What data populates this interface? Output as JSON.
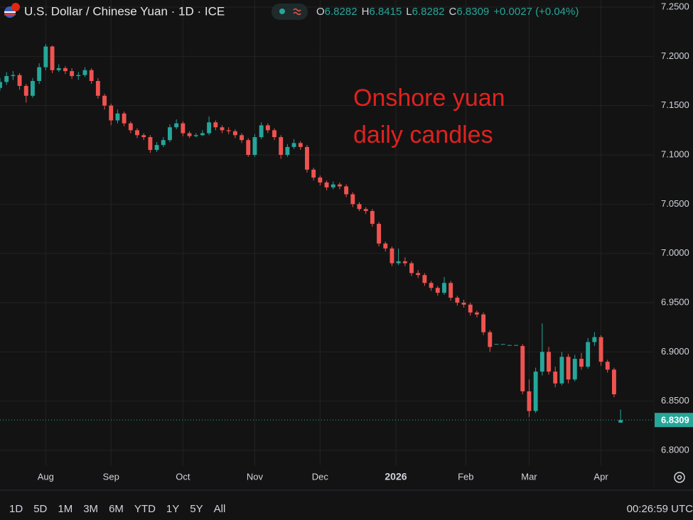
{
  "chart_data": {
    "type": "candlestick",
    "title": "U.S. Dollar / Chinese Yuan · 1D · ICE",
    "ohlc_labels": [
      "O",
      "H",
      "L",
      "C"
    ],
    "change": "+0.0027 (+0.04%)",
    "annotation": [
      "Onshore yuan",
      "daily candles"
    ],
    "annotation_color": "#e0221f",
    "up_color": "#26a69a",
    "down_color": "#ef5350",
    "grid": true,
    "open": [
      7.168,
      7.174,
      7.18,
      7.181,
      7.17,
      7.16,
      7.175,
      7.189,
      7.21,
      7.186,
      7.188,
      7.185,
      7.18,
      7.181,
      7.186,
      7.175,
      7.16,
      7.15,
      7.135,
      7.142,
      7.132,
      7.125,
      7.12,
      7.118,
      7.105,
      7.11,
      7.115,
      7.128,
      7.132,
      7.122,
      7.119,
      7.12,
      7.122,
      7.133,
      7.128,
      7.125,
      7.124,
      7.12,
      7.115,
      7.1,
      7.118,
      7.13,
      7.125,
      7.118,
      7.1,
      7.108,
      7.112,
      7.108,
      7.085,
      7.077,
      7.072,
      7.067,
      7.07,
      7.068,
      7.06,
      7.05,
      7.045,
      7.043,
      7.03,
      7.01,
      7.005,
      6.99,
      6.992,
      6.99,
      6.98,
      6.978,
      6.97,
      6.965,
      6.96,
      6.97,
      6.955,
      6.95,
      6.948,
      6.94,
      6.938,
      6.92,
      6.908,
      6.908,
      6.907,
      6.907,
      6.906,
      6.86,
      6.84,
      6.88,
      6.9,
      6.88,
      6.868,
      6.895,
      6.872,
      6.893,
      6.885,
      6.91,
      6.915,
      6.89,
      6.882,
      6.8282
    ],
    "high": [
      7.178,
      7.184,
      7.185,
      7.183,
      7.172,
      7.178,
      7.193,
      7.2125,
      7.211,
      7.192,
      7.19,
      7.188,
      7.184,
      7.189,
      7.188,
      7.178,
      7.162,
      7.152,
      7.146,
      7.144,
      7.134,
      7.127,
      7.122,
      7.12,
      7.113,
      7.118,
      7.131,
      7.136,
      7.134,
      7.124,
      7.122,
      7.125,
      7.139,
      7.135,
      7.13,
      7.128,
      7.126,
      7.122,
      7.117,
      7.121,
      7.133,
      7.132,
      7.127,
      7.12,
      7.111,
      7.116,
      7.114,
      7.11,
      7.087,
      7.079,
      7.074,
      7.073,
      7.072,
      7.07,
      7.062,
      7.052,
      7.047,
      7.045,
      7.032,
      7.012,
      7.007,
      7.005,
      6.996,
      6.992,
      6.983,
      6.98,
      6.972,
      6.967,
      6.976,
      6.972,
      6.957,
      6.953,
      6.95,
      6.942,
      6.94,
      6.922,
      6.908,
      6.908,
      6.907,
      6.907,
      6.908,
      6.872,
      6.884,
      6.929,
      6.905,
      6.885,
      6.9,
      6.898,
      6.897,
      6.899,
      6.914,
      6.92,
      6.917,
      6.892,
      6.884,
      6.8415
    ],
    "low": [
      7.165,
      7.171,
      7.176,
      7.166,
      7.153,
      7.158,
      7.172,
      7.186,
      7.183,
      7.184,
      7.182,
      7.177,
      7.176,
      7.179,
      7.172,
      7.157,
      7.146,
      7.13,
      7.132,
      7.129,
      7.122,
      7.117,
      7.115,
      7.102,
      7.103,
      7.108,
      7.113,
      7.126,
      7.119,
      7.117,
      7.118,
      7.119,
      7.12,
      7.125,
      7.122,
      7.121,
      7.117,
      7.112,
      7.098,
      7.098,
      7.116,
      7.122,
      7.115,
      7.096,
      7.098,
      7.106,
      7.105,
      7.082,
      7.074,
      7.069,
      7.064,
      7.065,
      7.065,
      7.057,
      7.047,
      7.043,
      7.04,
      7.027,
      7.007,
      7.002,
      6.987,
      6.988,
      6.987,
      6.977,
      6.975,
      6.967,
      6.962,
      6.957,
      6.958,
      6.952,
      6.947,
      6.945,
      6.937,
      6.935,
      6.917,
      6.9,
      6.908,
      6.908,
      6.907,
      6.907,
      6.857,
      6.834,
      6.838,
      6.876,
      6.877,
      6.864,
      6.866,
      6.868,
      6.87,
      6.882,
      6.883,
      6.906,
      6.886,
      6.879,
      6.854,
      6.8282
    ],
    "close": [
      7.174,
      7.18,
      7.181,
      7.17,
      7.16,
      7.175,
      7.189,
      7.21,
      7.186,
      7.188,
      7.185,
      7.18,
      7.181,
      7.186,
      7.175,
      7.16,
      7.15,
      7.135,
      7.142,
      7.132,
      7.125,
      7.12,
      7.118,
      7.105,
      7.11,
      7.115,
      7.128,
      7.132,
      7.122,
      7.119,
      7.12,
      7.122,
      7.133,
      7.128,
      7.125,
      7.124,
      7.12,
      7.115,
      7.1,
      7.118,
      7.13,
      7.125,
      7.118,
      7.1,
      7.108,
      7.112,
      7.108,
      7.085,
      7.077,
      7.072,
      7.067,
      7.07,
      7.068,
      7.06,
      7.05,
      7.045,
      7.043,
      7.03,
      7.01,
      7.005,
      6.99,
      6.992,
      6.99,
      6.98,
      6.978,
      6.97,
      6.965,
      6.96,
      6.97,
      6.955,
      6.95,
      6.948,
      6.94,
      6.938,
      6.92,
      6.905,
      6.908,
      6.908,
      6.907,
      6.907,
      6.86,
      6.84,
      6.88,
      6.9,
      6.88,
      6.868,
      6.895,
      6.872,
      6.893,
      6.885,
      6.91,
      6.915,
      6.89,
      6.882,
      6.857,
      6.8309
    ],
    "xlim": [
      0,
      100.1
    ],
    "xticks": [
      {
        "value": 7,
        "label": "Aug"
      },
      {
        "value": 17,
        "label": "Sep"
      },
      {
        "value": 28,
        "label": "Oct"
      },
      {
        "value": 39,
        "label": "Nov"
      },
      {
        "value": 49,
        "label": "Dec"
      },
      {
        "value": 60.6,
        "label": "2026"
      },
      {
        "value": 71.3,
        "label": "Feb"
      },
      {
        "value": 81,
        "label": "Mar"
      },
      {
        "value": 92,
        "label": "Apr"
      }
    ],
    "ylim": [
      6.7849,
      7.2572
    ],
    "yticks": [
      {
        "value": 6.8,
        "label": "6.8000"
      },
      {
        "value": 6.85,
        "label": "6.8500"
      },
      {
        "value": 6.9,
        "label": "6.9000"
      },
      {
        "value": 6.95,
        "label": "6.9500"
      },
      {
        "value": 7.0,
        "label": "7.0000"
      },
      {
        "value": 7.05,
        "label": "7.0500"
      },
      {
        "value": 7.1,
        "label": "7.1000"
      },
      {
        "value": 7.15,
        "label": "7.1500"
      },
      {
        "value": 7.2,
        "label": "7.2000"
      },
      {
        "value": 7.25,
        "label": "7.2500"
      }
    ]
  },
  "toolbar": {
    "ranges": [
      "1D",
      "5D",
      "1M",
      "3M",
      "6M",
      "YTD",
      "1Y",
      "5Y",
      "All"
    ],
    "clock": "00:26:59 UTC"
  }
}
